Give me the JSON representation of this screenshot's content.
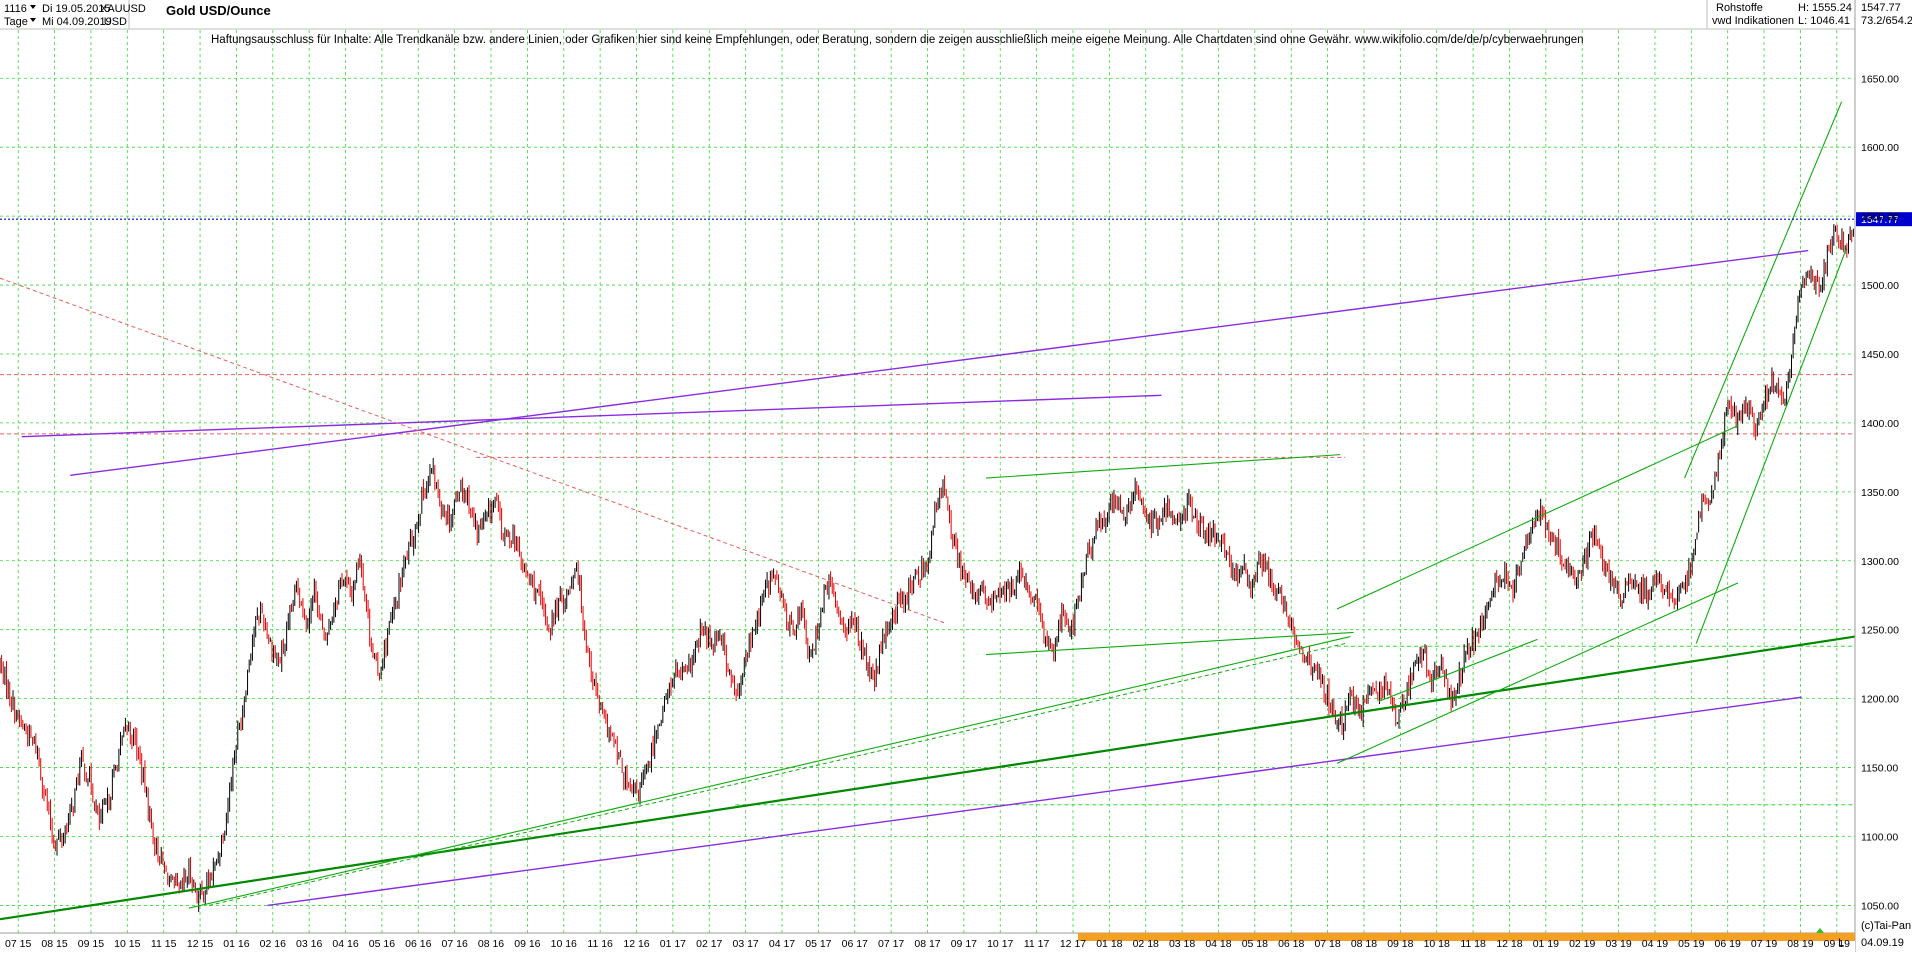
{
  "header": {
    "period_code": "1116",
    "date_from": "Di 19.05.2015",
    "symbol": "XAUUSD",
    "interval": "Tage",
    "date_to": "Mi 04.09.2019",
    "currency": "USD",
    "title": "Gold USD/Ounce",
    "category": "Rohstoffe",
    "source": "vwd Indikationen",
    "high_label": "H: 1555.24",
    "low_label": "L: 1046.41",
    "last_value": "1547.77",
    "change_value": "73.2/654.2"
  },
  "disclaimer": "Haftungsausschluss für Inhalte: Alle Trendkanäle bzw. andere Linien, oder Grafiken hier sind keine Empfehlungen, oder Beratung, sondern die zeigen ausschließlich meine eigene Meinung. Alle Chartdaten sind ohne Gewähr.  www.wikifolio.com/de/de/p/cyberwaehrungen",
  "footer": {
    "credit": "(c)Tai-Pan",
    "last_date": "04.09.19",
    "scale_mode": "L"
  },
  "colors": {
    "background": "#ffffff",
    "grid": "#36d836",
    "candle_up": "#000000",
    "candle_down": "#e00000",
    "trend_green": "#11aa11",
    "trend_green_dark": "#008800",
    "trend_purple": "#8a2be2",
    "resistance_red": "#e36060",
    "last_price_line": "#0000cc",
    "price_tag_bg": "#0000cc",
    "timeline_band": "#f5a020"
  },
  "chart_data": {
    "type": "candlestick",
    "title": "Gold USD/Ounce",
    "ylim": [
      1030,
      1685
    ],
    "y_ticks": [
      1050,
      1100,
      1150,
      1200,
      1250,
      1300,
      1350,
      1400,
      1450,
      1500,
      1550,
      1600,
      1650
    ],
    "y_scale": "linear",
    "grid": true,
    "last_price": 1547.77,
    "x_ticks": [
      "07 15",
      "08 15",
      "09 15",
      "10 15",
      "11 15",
      "12 15",
      "01 16",
      "02 16",
      "03 16",
      "04 16",
      "05 16",
      "06 16",
      "07 16",
      "08 16",
      "09 16",
      "10 16",
      "11 16",
      "12 16",
      "01 17",
      "02 17",
      "03 17",
      "04 17",
      "05 17",
      "06 17",
      "07 17",
      "08 17",
      "09 17",
      "10 17",
      "11 17",
      "12 17",
      "01 18",
      "02 18",
      "03 18",
      "04 18",
      "05 18",
      "06 18",
      "07 18",
      "08 18",
      "09 18",
      "10 18",
      "11 18",
      "12 18",
      "01 19",
      "02 19",
      "03 19",
      "04 19",
      "05 19",
      "06 19",
      "07 19",
      "08 19",
      "09 19"
    ],
    "price_path": [
      [
        0,
        1225
      ],
      [
        2,
        1185
      ],
      [
        3,
        1175
      ],
      [
        4,
        1165
      ],
      [
        5,
        1130
      ],
      [
        6,
        1095
      ],
      [
        7,
        1100
      ],
      [
        8,
        1120
      ],
      [
        9,
        1155
      ],
      [
        10,
        1140
      ],
      [
        11,
        1110
      ],
      [
        12,
        1125
      ],
      [
        13,
        1155
      ],
      [
        14,
        1180
      ],
      [
        15,
        1170
      ],
      [
        16,
        1140
      ],
      [
        17,
        1100
      ],
      [
        18,
        1080
      ],
      [
        19,
        1065
      ],
      [
        20,
        1060
      ],
      [
        21,
        1075
      ],
      [
        22,
        1055
      ],
      [
        23,
        1065
      ],
      [
        24,
        1080
      ],
      [
        25,
        1110
      ],
      [
        26,
        1160
      ],
      [
        27,
        1195
      ],
      [
        28,
        1245
      ],
      [
        29,
        1265
      ],
      [
        30,
        1240
      ],
      [
        31,
        1225
      ],
      [
        32,
        1250
      ],
      [
        33,
        1285
      ],
      [
        34,
        1255
      ],
      [
        35,
        1280
      ],
      [
        36,
        1240
      ],
      [
        37,
        1265
      ],
      [
        38,
        1290
      ],
      [
        39,
        1275
      ],
      [
        40,
        1305
      ],
      [
        41,
        1250
      ],
      [
        42,
        1215
      ],
      [
        43,
        1245
      ],
      [
        44,
        1270
      ],
      [
        45,
        1300
      ],
      [
        46,
        1320
      ],
      [
        47,
        1350
      ],
      [
        48,
        1365
      ],
      [
        49,
        1340
      ],
      [
        50,
        1330
      ],
      [
        51,
        1355
      ],
      [
        52,
        1345
      ],
      [
        53,
        1320
      ],
      [
        54,
        1330
      ],
      [
        55,
        1345
      ],
      [
        56,
        1315
      ],
      [
        57,
        1320
      ],
      [
        58,
        1295
      ],
      [
        59,
        1285
      ],
      [
        60,
        1270
      ],
      [
        61,
        1250
      ],
      [
        62,
        1270
      ],
      [
        63,
        1275
      ],
      [
        64,
        1300
      ],
      [
        65,
        1245
      ],
      [
        66,
        1210
      ],
      [
        67,
        1185
      ],
      [
        68,
        1170
      ],
      [
        69,
        1150
      ],
      [
        70,
        1130
      ],
      [
        71,
        1135
      ],
      [
        72,
        1150
      ],
      [
        73,
        1180
      ],
      [
        74,
        1200
      ],
      [
        75,
        1220
      ],
      [
        76,
        1215
      ],
      [
        77,
        1230
      ],
      [
        78,
        1250
      ],
      [
        79,
        1240
      ],
      [
        80,
        1250
      ],
      [
        81,
        1215
      ],
      [
        82,
        1200
      ],
      [
        83,
        1235
      ],
      [
        84,
        1255
      ],
      [
        85,
        1280
      ],
      [
        86,
        1290
      ],
      [
        87,
        1265
      ],
      [
        88,
        1250
      ],
      [
        89,
        1265
      ],
      [
        90,
        1225
      ],
      [
        91,
        1260
      ],
      [
        92,
        1285
      ],
      [
        93,
        1265
      ],
      [
        94,
        1250
      ],
      [
        95,
        1255
      ],
      [
        96,
        1230
      ],
      [
        97,
        1210
      ],
      [
        98,
        1240
      ],
      [
        99,
        1260
      ],
      [
        100,
        1270
      ],
      [
        101,
        1280
      ],
      [
        102,
        1290
      ],
      [
        103,
        1300
      ],
      [
        104,
        1340
      ],
      [
        105,
        1355
      ],
      [
        106,
        1310
      ],
      [
        107,
        1290
      ],
      [
        108,
        1275
      ],
      [
        109,
        1280
      ],
      [
        110,
        1265
      ],
      [
        111,
        1280
      ],
      [
        112,
        1275
      ],
      [
        113,
        1290
      ],
      [
        114,
        1280
      ],
      [
        115,
        1270
      ],
      [
        116,
        1245
      ],
      [
        117,
        1235
      ],
      [
        118,
        1265
      ],
      [
        119,
        1250
      ],
      [
        120,
        1280
      ],
      [
        121,
        1310
      ],
      [
        122,
        1325
      ],
      [
        123,
        1335
      ],
      [
        124,
        1345
      ],
      [
        125,
        1330
      ],
      [
        126,
        1350
      ],
      [
        127,
        1340
      ],
      [
        128,
        1325
      ],
      [
        129,
        1330
      ],
      [
        130,
        1340
      ],
      [
        131,
        1325
      ],
      [
        132,
        1345
      ],
      [
        133,
        1330
      ],
      [
        134,
        1315
      ],
      [
        135,
        1320
      ],
      [
        136,
        1305
      ],
      [
        137,
        1290
      ],
      [
        138,
        1295
      ],
      [
        139,
        1280
      ],
      [
        140,
        1300
      ],
      [
        141,
        1290
      ],
      [
        142,
        1275
      ],
      [
        143,
        1260
      ],
      [
        144,
        1245
      ],
      [
        145,
        1230
      ],
      [
        146,
        1220
      ],
      [
        147,
        1210
      ],
      [
        148,
        1190
      ],
      [
        149,
        1180
      ],
      [
        150,
        1200
      ],
      [
        151,
        1190
      ],
      [
        152,
        1205
      ],
      [
        153,
        1200
      ],
      [
        154,
        1215
      ],
      [
        155,
        1185
      ],
      [
        156,
        1200
      ],
      [
        157,
        1220
      ],
      [
        158,
        1235
      ],
      [
        159,
        1215
      ],
      [
        160,
        1225
      ],
      [
        161,
        1200
      ],
      [
        162,
        1215
      ],
      [
        163,
        1235
      ],
      [
        164,
        1245
      ],
      [
        165,
        1260
      ],
      [
        166,
        1285
      ],
      [
        167,
        1290
      ],
      [
        168,
        1280
      ],
      [
        169,
        1300
      ],
      [
        170,
        1320
      ],
      [
        171,
        1340
      ],
      [
        172,
        1320
      ],
      [
        173,
        1310
      ],
      [
        174,
        1295
      ],
      [
        175,
        1285
      ],
      [
        176,
        1300
      ],
      [
        177,
        1320
      ],
      [
        178,
        1300
      ],
      [
        179,
        1285
      ],
      [
        180,
        1275
      ],
      [
        181,
        1285
      ],
      [
        182,
        1280
      ],
      [
        183,
        1275
      ],
      [
        184,
        1290
      ],
      [
        185,
        1280
      ],
      [
        186,
        1270
      ],
      [
        187,
        1280
      ],
      [
        188,
        1300
      ],
      [
        189,
        1345
      ],
      [
        190,
        1340
      ],
      [
        191,
        1380
      ],
      [
        192,
        1420
      ],
      [
        193,
        1400
      ],
      [
        194,
        1415
      ],
      [
        195,
        1395
      ],
      [
        196,
        1420
      ],
      [
        197,
        1430
      ],
      [
        198,
        1410
      ],
      [
        199,
        1450
      ],
      [
        200,
        1500
      ],
      [
        201,
        1510
      ],
      [
        202,
        1495
      ],
      [
        203,
        1525
      ],
      [
        204,
        1540
      ],
      [
        205,
        1520
      ],
      [
        206,
        1548
      ]
    ],
    "trendlines": [
      {
        "style": "purple",
        "from": [
          1.3,
          1390
        ],
        "to": [
          69.5,
          1420
        ]
      },
      {
        "style": "purple",
        "from": [
          4.2,
          1362
        ],
        "to": [
          108.2,
          1525
        ]
      },
      {
        "style": "purple",
        "from": [
          16.0,
          1050
        ],
        "to": [
          107.8,
          1201
        ]
      },
      {
        "style": "green_dark",
        "from": [
          0,
          1040
        ],
        "to": [
          111.0,
          1245
        ]
      },
      {
        "style": "green",
        "from": [
          11.3,
          1048
        ],
        "to": [
          80.8,
          1245
        ]
      },
      {
        "style": "green",
        "from": [
          59.0,
          1360
        ],
        "to": [
          80.2,
          1377
        ]
      },
      {
        "style": "green",
        "from": [
          59.0,
          1232
        ],
        "to": [
          81.0,
          1248
        ]
      },
      {
        "style": "green",
        "from": [
          80.0,
          1265
        ],
        "to": [
          104.0,
          1398
        ]
      },
      {
        "style": "green",
        "from": [
          80.0,
          1153
        ],
        "to": [
          104.0,
          1284
        ]
      },
      {
        "style": "green",
        "from": [
          82.5,
          1198
        ],
        "to": [
          92.0,
          1243
        ]
      },
      {
        "style": "green",
        "from": [
          100.8,
          1360
        ],
        "to": [
          110.2,
          1633
        ]
      },
      {
        "style": "green",
        "from": [
          101.5,
          1240
        ],
        "to": [
          110.5,
          1527
        ]
      }
    ],
    "levels": [
      {
        "style": "red_dash",
        "value": 1435
      },
      {
        "style": "red_dash",
        "value": 1392
      },
      {
        "style": "red_dash",
        "value": 1375,
        "from": 28.5,
        "to": 80.5
      },
      {
        "style": "green_dash",
        "value": 1123,
        "from": 44.0,
        "to": 111.0
      },
      {
        "style": "green_dash",
        "value": 1238,
        "from": 80.0,
        "to": 111.0
      }
    ]
  }
}
